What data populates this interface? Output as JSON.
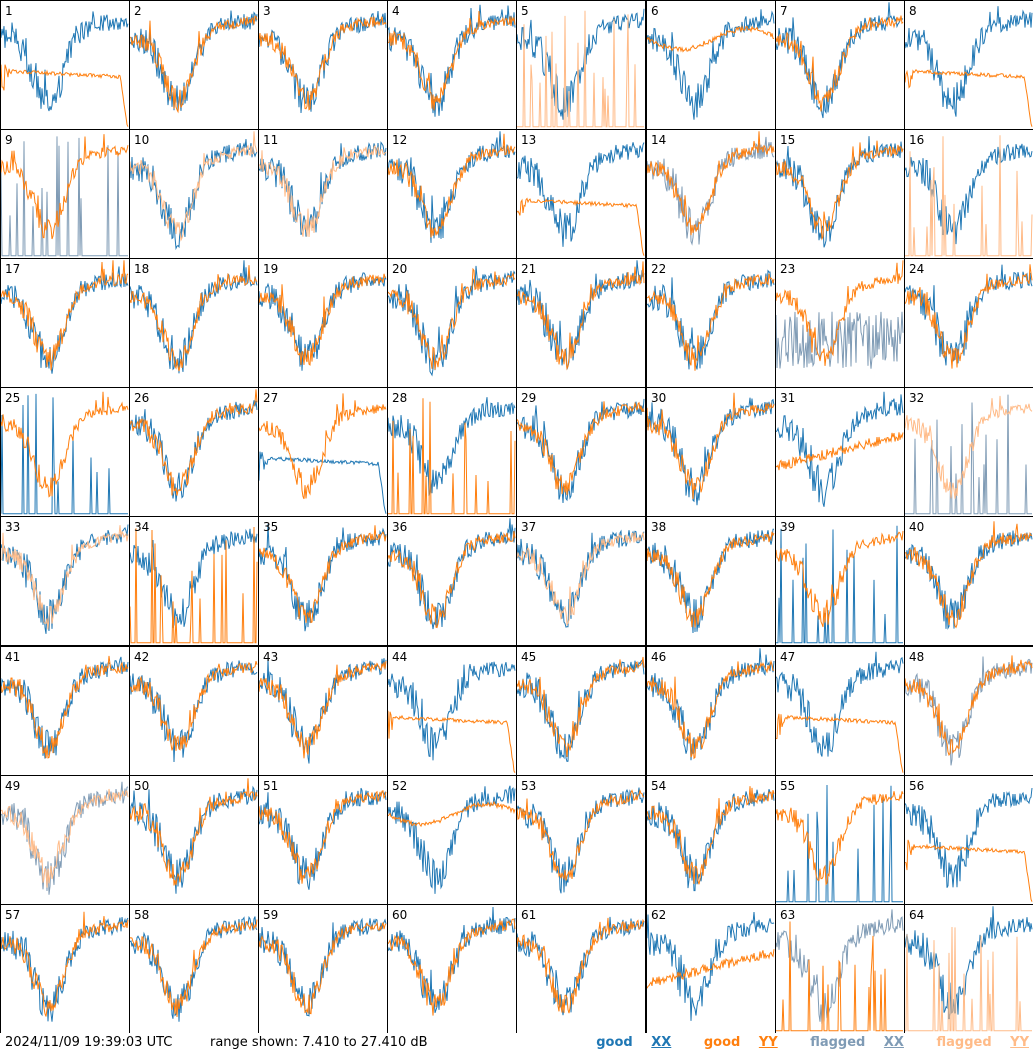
{
  "footer": {
    "timestamp": "2024/11/09 19:39:03 UTC",
    "range_text": "range shown: 7.410 to 27.410 dB",
    "legend": [
      {
        "label": "good",
        "pol": "XX",
        "color": "#1f77b4"
      },
      {
        "label": "good",
        "pol": "YY",
        "color": "#ff7f0e"
      },
      {
        "label": "flagged",
        "pol": "XX",
        "color": "#7f9bb5"
      },
      {
        "label": "flagged",
        "pol": "YY",
        "color": "#ffbb88"
      }
    ]
  },
  "chart_data": {
    "type": "line",
    "grid": {
      "rows": 8,
      "cols": 8
    },
    "y_range_db": [
      7.41,
      27.41
    ],
    "series_colors": {
      "good_xx": "#1f77b4",
      "good_yy": "#ff7f0e",
      "flagged_xx": "#7f9bb5",
      "flagged_yy": "#ffbb88"
    },
    "panels": [
      {
        "n": 1,
        "xx": "good",
        "yy": "good",
        "yy_shape": "decay"
      },
      {
        "n": 2,
        "xx": "good",
        "yy": "good"
      },
      {
        "n": 3,
        "xx": "good",
        "yy": "good"
      },
      {
        "n": 4,
        "xx": "good",
        "yy": "good"
      },
      {
        "n": 5,
        "xx": "good",
        "yy": "flagged",
        "yy_shape": "spikes"
      },
      {
        "n": 6,
        "xx": "good",
        "yy": "good",
        "yy_shape": "smooth_high"
      },
      {
        "n": 7,
        "xx": "good",
        "yy": "good"
      },
      {
        "n": 8,
        "xx": "good",
        "yy": "good",
        "yy_shape": "decay"
      },
      {
        "n": 9,
        "xx": "flagged",
        "yy": "good",
        "xx_shape": "spikes"
      },
      {
        "n": 10,
        "xx": "good",
        "yy": "flagged"
      },
      {
        "n": 11,
        "xx": "good",
        "yy": "flagged"
      },
      {
        "n": 12,
        "xx": "good",
        "yy": "good"
      },
      {
        "n": 13,
        "xx": "good",
        "yy": "good",
        "yy_shape": "decay"
      },
      {
        "n": 14,
        "xx": "flagged",
        "yy": "good"
      },
      {
        "n": 15,
        "xx": "good",
        "yy": "good"
      },
      {
        "n": 16,
        "xx": "good",
        "yy": "flagged",
        "yy_shape": "spikes"
      },
      {
        "n": 17,
        "xx": "good",
        "yy": "good"
      },
      {
        "n": 18,
        "xx": "good",
        "yy": "good"
      },
      {
        "n": 19,
        "xx": "good",
        "yy": "good"
      },
      {
        "n": 20,
        "xx": "good",
        "yy": "good"
      },
      {
        "n": 21,
        "xx": "good",
        "yy": "good"
      },
      {
        "n": 22,
        "xx": "good",
        "yy": "good"
      },
      {
        "n": 23,
        "xx": "flagged",
        "yy": "good",
        "xx_shape": "noisy_low"
      },
      {
        "n": 24,
        "xx": "good",
        "yy": "good"
      },
      {
        "n": 25,
        "xx": "good",
        "yy": "good",
        "xx_shape": "spikes"
      },
      {
        "n": 26,
        "xx": "good",
        "yy": "good"
      },
      {
        "n": 27,
        "xx": "good",
        "yy": "good",
        "xx_shape": "decay"
      },
      {
        "n": 28,
        "xx": "good",
        "yy": "good",
        "yy_shape": "spikes"
      },
      {
        "n": 29,
        "xx": "good",
        "yy": "good"
      },
      {
        "n": 30,
        "xx": "good",
        "yy": "good"
      },
      {
        "n": 31,
        "xx": "good",
        "yy": "good",
        "yy_shape": "smooth_low"
      },
      {
        "n": 32,
        "xx": "flagged",
        "yy": "flagged",
        "xx_shape": "spikes"
      },
      {
        "n": 33,
        "xx": "good",
        "yy": "flagged"
      },
      {
        "n": 34,
        "xx": "good",
        "yy": "good",
        "yy_shape": "spikes"
      },
      {
        "n": 35,
        "xx": "good",
        "yy": "good"
      },
      {
        "n": 36,
        "xx": "good",
        "yy": "good"
      },
      {
        "n": 37,
        "xx": "good",
        "yy": "flagged"
      },
      {
        "n": 38,
        "xx": "good",
        "yy": "good"
      },
      {
        "n": 39,
        "xx": "good",
        "yy": "good",
        "xx_shape": "spikes"
      },
      {
        "n": 40,
        "xx": "good",
        "yy": "good"
      },
      {
        "n": 41,
        "xx": "good",
        "yy": "good"
      },
      {
        "n": 42,
        "xx": "good",
        "yy": "good"
      },
      {
        "n": 43,
        "xx": "good",
        "yy": "good"
      },
      {
        "n": 44,
        "xx": "good",
        "yy": "good",
        "yy_shape": "decay"
      },
      {
        "n": 45,
        "xx": "good",
        "yy": "good"
      },
      {
        "n": 46,
        "xx": "good",
        "yy": "good"
      },
      {
        "n": 47,
        "xx": "good",
        "yy": "good",
        "yy_shape": "decay"
      },
      {
        "n": 48,
        "xx": "flagged",
        "yy": "good"
      },
      {
        "n": 49,
        "xx": "flagged",
        "yy": "flagged"
      },
      {
        "n": 50,
        "xx": "good",
        "yy": "good"
      },
      {
        "n": 51,
        "xx": "good",
        "yy": "good"
      },
      {
        "n": 52,
        "xx": "good",
        "yy": "good",
        "yy_shape": "smooth_high"
      },
      {
        "n": 53,
        "xx": "good",
        "yy": "good"
      },
      {
        "n": 54,
        "xx": "good",
        "yy": "good"
      },
      {
        "n": 55,
        "xx": "good",
        "yy": "good",
        "xx_shape": "spikes"
      },
      {
        "n": 56,
        "xx": "good",
        "yy": "good",
        "yy_shape": "decay"
      },
      {
        "n": 57,
        "xx": "good",
        "yy": "good"
      },
      {
        "n": 58,
        "xx": "good",
        "yy": "good"
      },
      {
        "n": 59,
        "xx": "good",
        "yy": "good"
      },
      {
        "n": 60,
        "xx": "good",
        "yy": "good"
      },
      {
        "n": 61,
        "xx": "good",
        "yy": "good"
      },
      {
        "n": 62,
        "xx": "good",
        "yy": "good",
        "yy_shape": "smooth_low"
      },
      {
        "n": 63,
        "xx": "flagged",
        "yy": "good",
        "yy_shape": "spikes"
      },
      {
        "n": 64,
        "xx": "good",
        "yy": "flagged",
        "yy_shape": "spikes"
      }
    ]
  }
}
